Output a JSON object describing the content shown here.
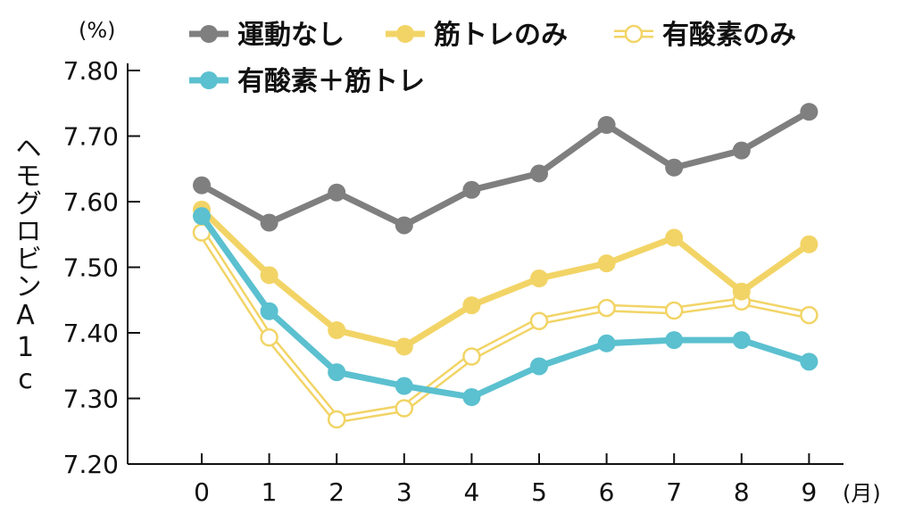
{
  "chart_data": {
    "type": "line",
    "ylabel": "ヘモグロビンA1c",
    "yunit": "(%)",
    "xunit": "(月)",
    "ylim": [
      7.2,
      7.8
    ],
    "yticks": [
      "7.20",
      "7.30",
      "7.40",
      "7.50",
      "7.60",
      "7.70",
      "7.80"
    ],
    "ytick_values": [
      7.2,
      7.3,
      7.4,
      7.5,
      7.6,
      7.7,
      7.8
    ],
    "x": [
      0,
      1,
      2,
      3,
      4,
      5,
      6,
      7,
      8,
      9
    ],
    "xtick_labels": [
      "0",
      "1",
      "2",
      "3",
      "4",
      "5",
      "6",
      "7",
      "8",
      "9"
    ],
    "legend_placement": "top",
    "grid": false,
    "series": [
      {
        "name": "運動なし",
        "color": "#7f7f7f",
        "style": "solid",
        "values": [
          7.625,
          7.568,
          7.614,
          7.564,
          7.618,
          7.643,
          7.717,
          7.652,
          7.678,
          7.737
        ]
      },
      {
        "name": "筋トレのみ",
        "color": "#f2d466",
        "style": "solid",
        "values": [
          7.588,
          7.488,
          7.404,
          7.379,
          7.442,
          7.483,
          7.506,
          7.545,
          7.463,
          7.535
        ]
      },
      {
        "name": "有酸素のみ",
        "color": "#f2d466",
        "style": "hollow",
        "values": [
          7.553,
          7.393,
          7.268,
          7.285,
          7.364,
          7.418,
          7.438,
          7.434,
          7.448,
          7.427
        ]
      },
      {
        "name": "有酸素＋筋トレ",
        "color": "#5bc0cf",
        "style": "solid",
        "values": [
          7.578,
          7.433,
          7.34,
          7.319,
          7.302,
          7.349,
          7.384,
          7.389,
          7.389,
          7.356
        ]
      }
    ]
  }
}
